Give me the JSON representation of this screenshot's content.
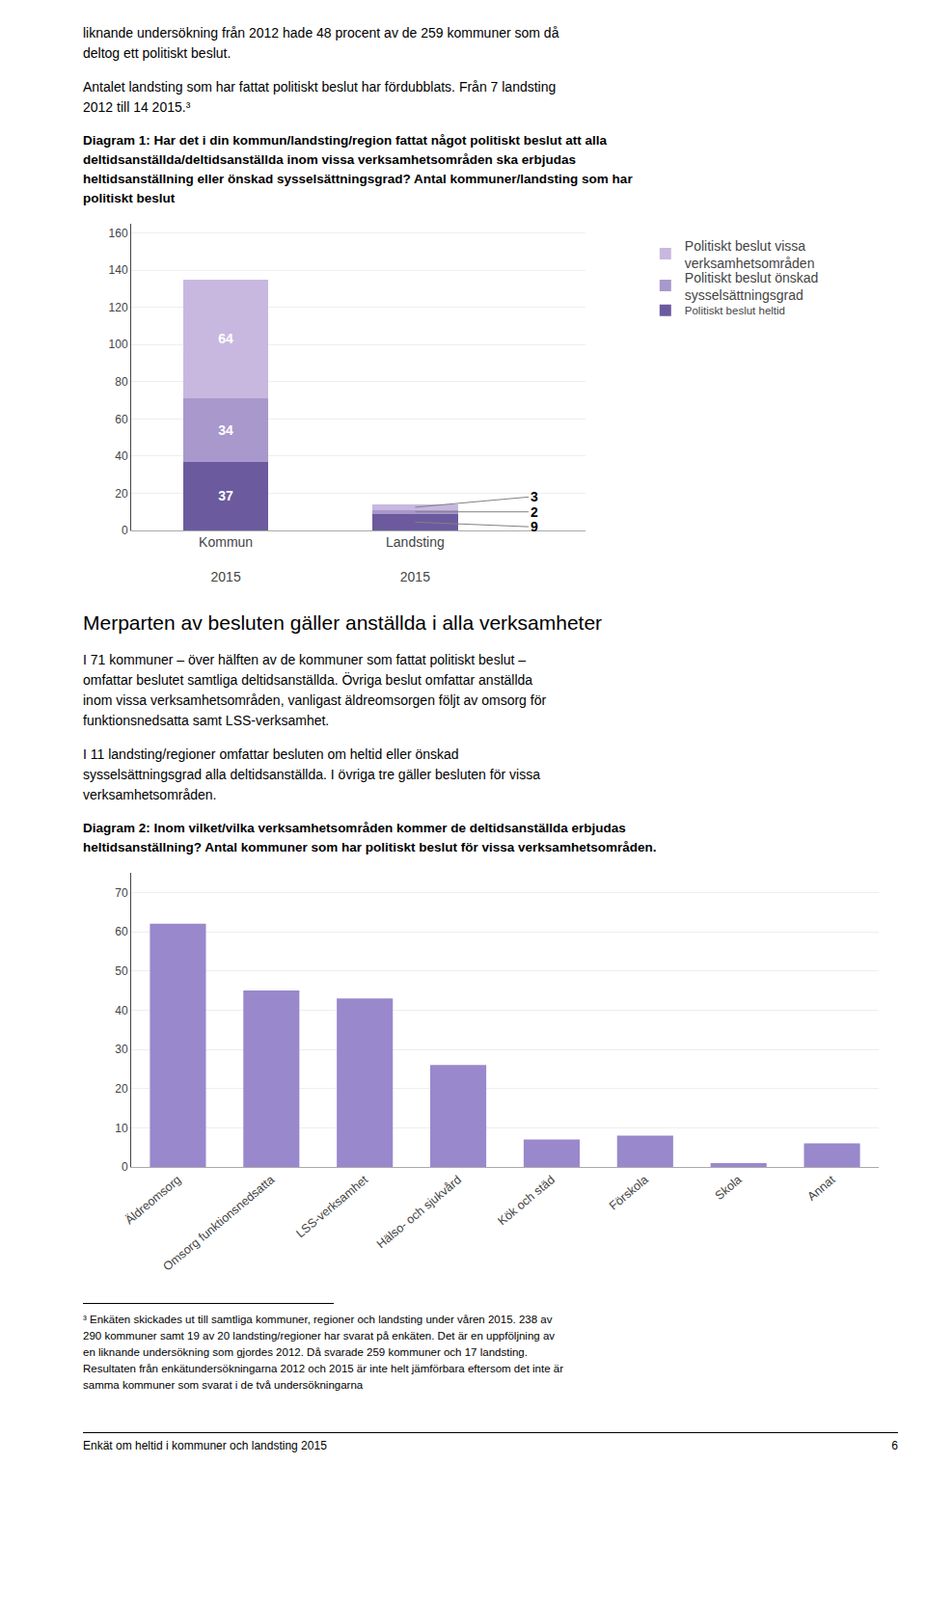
{
  "page": {
    "intro": [
      [
        "liknande undersökning från 2012 hade 48 procent av de 259 kommuner som då",
        "deltog ett politiskt beslut."
      ],
      [
        "Antalet landsting som har fattat politiskt beslut har fördubblats. Från 7 landsting",
        "2012 till 14 2015.³"
      ]
    ],
    "section_title": "Merparten av besluten gäller anställda i alla verksamheter",
    "body": [
      [
        "I 71 kommuner – över hälften av de kommuner som fattat politiskt beslut –",
        "omfattar beslutet samtliga deltidsanställda. Övriga beslut omfattar anställda",
        "inom vissa verksamhetsområden, vanligast äldreomsorgen följt av omsorg för",
        "funktionsnedsatta samt LSS-verksamhet."
      ],
      [
        "I 11 landsting/regioner omfattar besluten om heltid eller önskad",
        "sysselsättningsgrad alla deltidsanställda. I övriga tre gäller besluten för vissa",
        "verksamhetsområden."
      ]
    ],
    "footnote": [
      "³ Enkäten skickades ut till samtliga kommuner, regioner och landsting under våren 2015. 238 av",
      "290 kommuner samt 19 av 20 landsting/regioner har svarat på enkäten. Det är en uppföljning av",
      "en liknande undersökning som gjordes 2012. Då svarade 259 kommuner och 17 landsting.",
      "Resultaten från enkätundersökningarna 2012 och 2015 är inte helt jämförbara eftersom det inte är",
      "samma kommuner som svarat i de två undersökningarna"
    ],
    "footer_left": "Enkät om heltid i kommuner och landsting 2015",
    "footer_right": "6"
  },
  "chart_data": [
    {
      "type": "bar",
      "title": "Diagram 1: Har det i din kommun/landsting/region fattat något politiskt beslut att alla\ndeltidsanställda/deltidsanställda inom vissa verksamhetsområden ska erbjudas\nheltidsanställning eller önskad sysselsättningsgrad? Antal kommuner/landsting som har\npolitiskt beslut",
      "categories": [
        "Kommun\n\n2015",
        "Landsting\n\n2015"
      ],
      "stacked": true,
      "series": [
        {
          "name": "Politiskt beslut heltid",
          "color": "#6b5b9e",
          "values": [
            37,
            9
          ]
        },
        {
          "name": "Politiskt beslut önskad\nsysselsättningsgrad",
          "color": "#a898cc",
          "values": [
            34,
            2
          ]
        },
        {
          "name": "Politiskt beslut vissa\nverksamhetsområden",
          "color": "#c8b8e0",
          "values": [
            64,
            3
          ]
        }
      ],
      "ylim": [
        0,
        165
      ],
      "yticks": [
        0,
        20,
        40,
        60,
        80,
        100,
        120,
        140,
        160
      ],
      "grid": true,
      "data_labels": true,
      "legend": "right",
      "annotations": [
        {
          "text": "3",
          "category": "Landsting\n\n2015",
          "series": "Politiskt beslut vissa\nverksamhetsområden"
        },
        {
          "text": "2",
          "category": "Landsting\n\n2015",
          "series": "Politiskt beslut önskad\nsysselsättningsgrad"
        },
        {
          "text": "9",
          "category": "Landsting\n\n2015",
          "series": "Politiskt beslut heltid"
        }
      ]
    },
    {
      "type": "bar",
      "title": "Diagram 2: Inom vilket/vilka verksamhetsområden kommer de deltidsanställda erbjudas\nheltidsanställning? Antal kommuner som har politiskt beslut för vissa verksamhetsområden.",
      "categories": [
        "Äldreomsorg",
        "Omsorg funktionsnedsatta",
        "LSS-verksamhet",
        "Hälso- och sjukvård",
        "Kök och städ",
        "Förskola",
        "Skola",
        "Annat"
      ],
      "values": [
        62,
        45,
        43,
        26,
        7,
        8,
        1,
        6
      ],
      "color": "#9988cc",
      "ylim": [
        0,
        75
      ],
      "yticks": [
        0,
        10,
        20,
        30,
        40,
        50,
        60,
        70
      ],
      "grid": true
    }
  ]
}
